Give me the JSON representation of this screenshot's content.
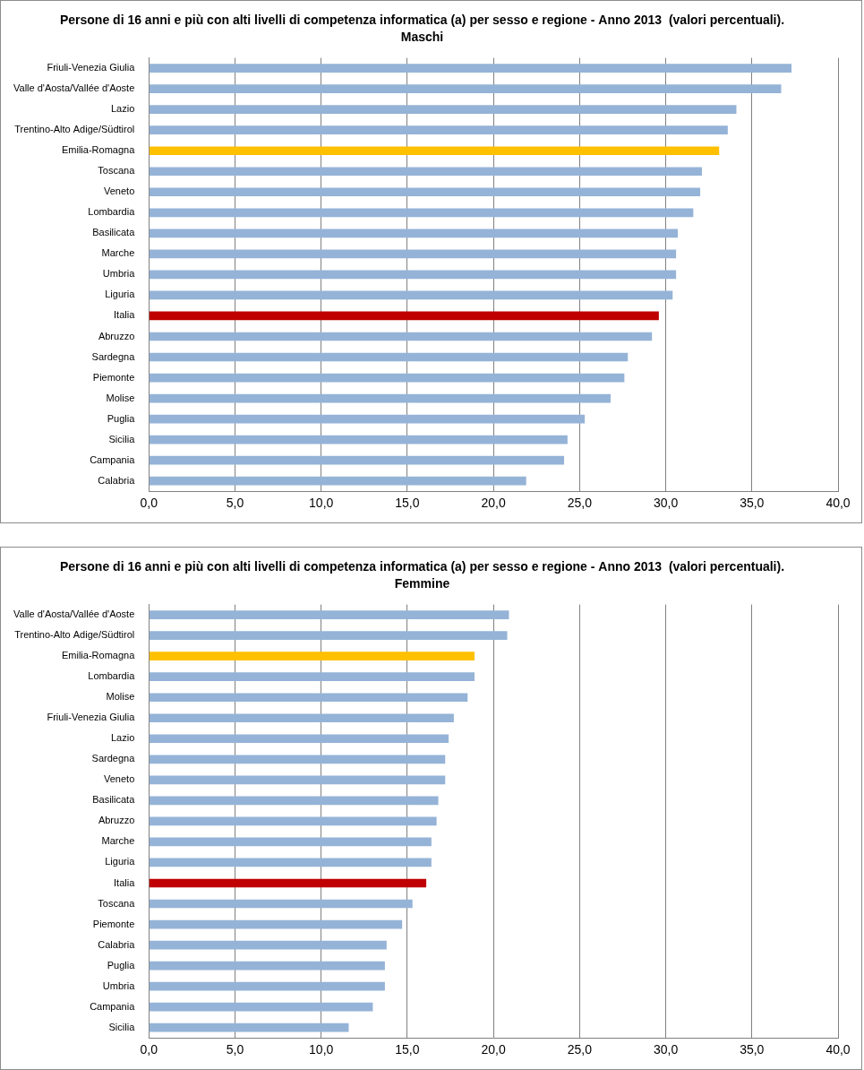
{
  "chart_data": [
    {
      "type": "bar",
      "orientation": "horizontal",
      "title": "Persone di 16 anni e più con alti livelli di competenza informatica (a) per sesso e regione - Anno 2013  (valori percentuali).",
      "subtitle": "Maschi",
      "categories": [
        "Friuli-Venezia Giulia",
        "Valle d'Aosta/Vallée d'Aoste",
        "Lazio",
        "Trentino-Alto Adige/Südtirol",
        "Emilia-Romagna",
        "Toscana",
        "Veneto",
        "Lombardia",
        "Basilicata",
        "Marche",
        "Umbria",
        "Liguria",
        "Italia",
        "Abruzzo",
        "Sardegna",
        "Piemonte",
        "Molise",
        "Puglia",
        "Sicilia",
        "Campania",
        "Calabria"
      ],
      "values": [
        37.3,
        36.7,
        34.1,
        33.6,
        33.1,
        32.1,
        32.0,
        31.6,
        30.7,
        30.6,
        30.6,
        30.4,
        29.6,
        29.2,
        27.8,
        27.6,
        26.8,
        25.3,
        24.3,
        24.1,
        21.9
      ],
      "colors": [
        "#95b3d7",
        "#95b3d7",
        "#95b3d7",
        "#95b3d7",
        "#ffc000",
        "#95b3d7",
        "#95b3d7",
        "#95b3d7",
        "#95b3d7",
        "#95b3d7",
        "#95b3d7",
        "#95b3d7",
        "#c00000",
        "#95b3d7",
        "#95b3d7",
        "#95b3d7",
        "#95b3d7",
        "#95b3d7",
        "#95b3d7",
        "#95b3d7",
        "#95b3d7"
      ],
      "xlim": [
        0,
        40
      ],
      "xticks": [
        {
          "value": 0,
          "label": "0,0"
        },
        {
          "value": 5,
          "label": "5,0"
        },
        {
          "value": 10,
          "label": "10,0"
        },
        {
          "value": 15,
          "label": "15,0"
        },
        {
          "value": 20,
          "label": "20,0"
        },
        {
          "value": 25,
          "label": "25,0"
        },
        {
          "value": 30,
          "label": "30,0"
        },
        {
          "value": 35,
          "label": "35,0"
        },
        {
          "value": 40,
          "label": "40,0"
        }
      ],
      "grid": true
    },
    {
      "type": "bar",
      "orientation": "horizontal",
      "title": "Persone di 16 anni e più con alti livelli di competenza informatica (a) per sesso e regione - Anno 2013  (valori percentuali).",
      "subtitle": "Femmine",
      "categories": [
        "Valle d'Aosta/Vallée d'Aoste",
        "Trentino-Alto Adige/Südtirol",
        "Emilia-Romagna",
        "Lombardia",
        "Molise",
        "Friuli-Venezia Giulia",
        "Lazio",
        "Sardegna",
        "Veneto",
        "Basilicata",
        "Abruzzo",
        "Marche",
        "Liguria",
        "Italia",
        "Toscana",
        "Piemonte",
        "Calabria",
        "Puglia",
        "Umbria",
        "Campania",
        "Sicilia"
      ],
      "values": [
        20.9,
        20.8,
        18.9,
        18.9,
        18.5,
        17.7,
        17.4,
        17.2,
        17.2,
        16.8,
        16.7,
        16.4,
        16.4,
        16.1,
        15.3,
        14.7,
        13.8,
        13.7,
        13.7,
        13.0,
        11.6
      ],
      "colors": [
        "#95b3d7",
        "#95b3d7",
        "#ffc000",
        "#95b3d7",
        "#95b3d7",
        "#95b3d7",
        "#95b3d7",
        "#95b3d7",
        "#95b3d7",
        "#95b3d7",
        "#95b3d7",
        "#95b3d7",
        "#95b3d7",
        "#c00000",
        "#95b3d7",
        "#95b3d7",
        "#95b3d7",
        "#95b3d7",
        "#95b3d7",
        "#95b3d7",
        "#95b3d7"
      ],
      "xlim": [
        0,
        40
      ],
      "xticks": [
        {
          "value": 0,
          "label": "0,0"
        },
        {
          "value": 5,
          "label": "5,0"
        },
        {
          "value": 10,
          "label": "10,0"
        },
        {
          "value": 15,
          "label": "15,0"
        },
        {
          "value": 20,
          "label": "20,0"
        },
        {
          "value": 25,
          "label": "25,0"
        },
        {
          "value": 30,
          "label": "30,0"
        },
        {
          "value": 35,
          "label": "35,0"
        },
        {
          "value": 40,
          "label": "40,0"
        }
      ],
      "grid": true
    }
  ]
}
